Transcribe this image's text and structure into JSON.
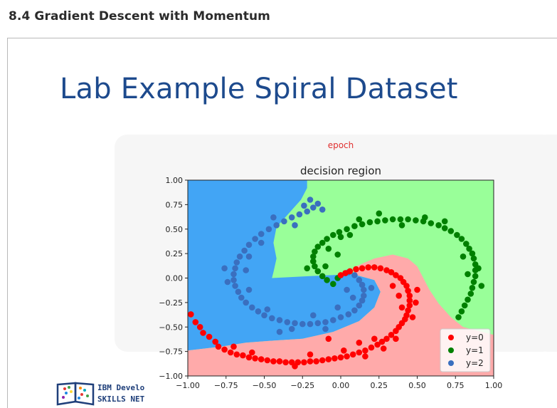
{
  "page": {
    "heading": "8.4 Gradient Descent with Momentum"
  },
  "slide": {
    "title": "Lab Example Spiral Dataset",
    "brand_line1": "IBM Develo",
    "brand_line2": "SKILLS NET"
  },
  "chart_data": {
    "type": "scatter",
    "supertitle": "epoch",
    "title": "decision region",
    "xlim": [
      -1.0,
      1.0
    ],
    "ylim": [
      -1.0,
      1.0
    ],
    "xticks": [
      "−1.00",
      "−0.75",
      "−0.50",
      "−0.25",
      "0.00",
      "0.25",
      "0.50",
      "0.75",
      "1.00"
    ],
    "yticks": [
      "1.00",
      "0.75",
      "0.50",
      "0.25",
      "0.00",
      "−0.25",
      "−0.50",
      "−0.75",
      "−1.00"
    ],
    "xtick_values": [
      -1.0,
      -0.75,
      -0.5,
      -0.25,
      0.0,
      0.25,
      0.5,
      0.75,
      1.0
    ],
    "ytick_values": [
      1.0,
      0.75,
      0.5,
      0.25,
      0.0,
      -0.25,
      -0.5,
      -0.75,
      -1.0
    ],
    "legend_position": "lower-right",
    "series": [
      {
        "name": "y=0",
        "color": "#ff0000",
        "region_color": "#ffaaaa",
        "points": [
          [
            -0.98,
            -0.37
          ],
          [
            -0.95,
            -0.45
          ],
          [
            -0.92,
            -0.5
          ],
          [
            -0.9,
            -0.56
          ],
          [
            -0.86,
            -0.6
          ],
          [
            -0.82,
            -0.65
          ],
          [
            -0.8,
            -0.7
          ],
          [
            -0.76,
            -0.73
          ],
          [
            -0.72,
            -0.76
          ],
          [
            -0.68,
            -0.78
          ],
          [
            -0.64,
            -0.79
          ],
          [
            -0.6,
            -0.81
          ],
          [
            -0.56,
            -0.82
          ],
          [
            -0.52,
            -0.83
          ],
          [
            -0.48,
            -0.84
          ],
          [
            -0.44,
            -0.85
          ],
          [
            -0.4,
            -0.85
          ],
          [
            -0.36,
            -0.86
          ],
          [
            -0.32,
            -0.86
          ],
          [
            -0.28,
            -0.86
          ],
          [
            -0.24,
            -0.86
          ],
          [
            -0.2,
            -0.85
          ],
          [
            -0.16,
            -0.85
          ],
          [
            -0.12,
            -0.84
          ],
          [
            -0.08,
            -0.83
          ],
          [
            -0.04,
            -0.82
          ],
          [
            0.0,
            -0.81
          ],
          [
            0.04,
            -0.8
          ],
          [
            0.08,
            -0.78
          ],
          [
            0.12,
            -0.76
          ],
          [
            0.16,
            -0.74
          ],
          [
            0.2,
            -0.71
          ],
          [
            0.24,
            -0.68
          ],
          [
            0.27,
            -0.65
          ],
          [
            0.3,
            -0.62
          ],
          [
            0.33,
            -0.58
          ],
          [
            0.36,
            -0.54
          ],
          [
            0.38,
            -0.5
          ],
          [
            0.4,
            -0.46
          ],
          [
            0.42,
            -0.42
          ],
          [
            0.43,
            -0.38
          ],
          [
            0.44,
            -0.33
          ],
          [
            0.45,
            -0.28
          ],
          [
            0.45,
            -0.23
          ],
          [
            0.45,
            -0.18
          ],
          [
            0.44,
            -0.13
          ],
          [
            0.43,
            -0.08
          ],
          [
            0.41,
            -0.04
          ],
          [
            0.39,
            0.0
          ],
          [
            0.36,
            0.03
          ],
          [
            0.33,
            0.06
          ],
          [
            0.3,
            0.08
          ],
          [
            0.26,
            0.1
          ],
          [
            0.22,
            0.11
          ],
          [
            0.18,
            0.11
          ],
          [
            0.14,
            0.1
          ],
          [
            0.1,
            0.09
          ],
          [
            0.06,
            0.07
          ],
          [
            0.03,
            0.05
          ],
          [
            0.0,
            0.03
          ],
          [
            -0.08,
            -0.62
          ],
          [
            0.02,
            -0.74
          ],
          [
            0.16,
            -0.8
          ],
          [
            0.28,
            -0.72
          ],
          [
            0.36,
            -0.62
          ],
          [
            0.47,
            -0.4
          ],
          [
            0.49,
            -0.25
          ],
          [
            0.5,
            -0.12
          ],
          [
            -0.3,
            -0.9
          ],
          [
            -0.2,
            -0.78
          ],
          [
            -0.58,
            -0.76
          ],
          [
            -0.7,
            -0.7
          ],
          [
            0.12,
            -0.66
          ],
          [
            0.22,
            -0.62
          ],
          [
            0.4,
            -0.3
          ],
          [
            0.38,
            -0.18
          ],
          [
            0.34,
            -0.08
          ]
        ]
      },
      {
        "name": "y=1",
        "color": "#008000",
        "region_color": "#99ff99",
        "points": [
          [
            -0.05,
            -0.06
          ],
          [
            -0.09,
            -0.02
          ],
          [
            -0.12,
            0.02
          ],
          [
            -0.15,
            0.07
          ],
          [
            -0.17,
            0.12
          ],
          [
            -0.18,
            0.17
          ],
          [
            -0.18,
            0.22
          ],
          [
            -0.17,
            0.27
          ],
          [
            -0.15,
            0.32
          ],
          [
            -0.12,
            0.36
          ],
          [
            -0.09,
            0.4
          ],
          [
            -0.05,
            0.44
          ],
          [
            -0.01,
            0.47
          ],
          [
            0.04,
            0.5
          ],
          [
            0.09,
            0.53
          ],
          [
            0.14,
            0.55
          ],
          [
            0.19,
            0.57
          ],
          [
            0.24,
            0.58
          ],
          [
            0.29,
            0.59
          ],
          [
            0.34,
            0.6
          ],
          [
            0.39,
            0.6
          ],
          [
            0.44,
            0.6
          ],
          [
            0.49,
            0.59
          ],
          [
            0.54,
            0.58
          ],
          [
            0.59,
            0.56
          ],
          [
            0.64,
            0.54
          ],
          [
            0.68,
            0.51
          ],
          [
            0.72,
            0.48
          ],
          [
            0.76,
            0.44
          ],
          [
            0.79,
            0.4
          ],
          [
            0.82,
            0.35
          ],
          [
            0.84,
            0.3
          ],
          [
            0.86,
            0.25
          ],
          [
            0.87,
            0.2
          ],
          [
            0.88,
            0.14
          ],
          [
            0.88,
            0.08
          ],
          [
            0.88,
            0.02
          ],
          [
            0.87,
            -0.04
          ],
          [
            0.86,
            -0.1
          ],
          [
            0.85,
            -0.16
          ],
          [
            0.83,
            -0.22
          ],
          [
            0.81,
            -0.28
          ],
          [
            0.79,
            -0.34
          ],
          [
            0.77,
            -0.4
          ],
          [
            -0.02,
            0.0
          ],
          [
            -0.1,
            0.12
          ],
          [
            -0.08,
            0.3
          ],
          [
            0.0,
            0.42
          ],
          [
            0.12,
            0.6
          ],
          [
            0.25,
            0.66
          ],
          [
            0.4,
            0.54
          ],
          [
            0.55,
            0.62
          ],
          [
            0.68,
            0.58
          ],
          [
            0.8,
            0.22
          ],
          [
            0.83,
            0.04
          ],
          [
            0.9,
            0.1
          ],
          [
            0.92,
            -0.08
          ],
          [
            -0.22,
            0.1
          ],
          [
            -0.02,
            0.24
          ],
          [
            0.06,
            0.44
          ]
        ]
      },
      {
        "name": "y=2",
        "color": "#3a6fbf",
        "region_color": "#42a5f5",
        "points": [
          [
            0.05,
            0.06
          ],
          [
            0.09,
            0.03
          ],
          [
            0.12,
            -0.02
          ],
          [
            0.14,
            -0.07
          ],
          [
            0.15,
            -0.12
          ],
          [
            0.15,
            -0.18
          ],
          [
            0.14,
            -0.23
          ],
          [
            0.12,
            -0.28
          ],
          [
            0.09,
            -0.33
          ],
          [
            0.05,
            -0.37
          ],
          [
            0.0,
            -0.4
          ],
          [
            -0.05,
            -0.43
          ],
          [
            -0.1,
            -0.45
          ],
          [
            -0.15,
            -0.46
          ],
          [
            -0.2,
            -0.47
          ],
          [
            -0.25,
            -0.47
          ],
          [
            -0.3,
            -0.46
          ],
          [
            -0.35,
            -0.45
          ],
          [
            -0.4,
            -0.43
          ],
          [
            -0.45,
            -0.41
          ],
          [
            -0.5,
            -0.38
          ],
          [
            -0.54,
            -0.34
          ],
          [
            -0.58,
            -0.3
          ],
          [
            -0.62,
            -0.25
          ],
          [
            -0.65,
            -0.2
          ],
          [
            -0.67,
            -0.14
          ],
          [
            -0.69,
            -0.08
          ],
          [
            -0.7,
            -0.02
          ],
          [
            -0.7,
            0.04
          ],
          [
            -0.69,
            0.1
          ],
          [
            -0.68,
            0.16
          ],
          [
            -0.66,
            0.22
          ],
          [
            -0.63,
            0.28
          ],
          [
            -0.6,
            0.34
          ],
          [
            -0.56,
            0.4
          ],
          [
            -0.52,
            0.45
          ],
          [
            -0.47,
            0.5
          ],
          [
            -0.42,
            0.54
          ],
          [
            -0.37,
            0.58
          ],
          [
            -0.32,
            0.62
          ],
          [
            -0.27,
            0.65
          ],
          [
            -0.22,
            0.68
          ],
          [
            -0.18,
            0.72
          ],
          [
            -0.15,
            0.76
          ],
          [
            0.04,
            -0.12
          ],
          [
            -0.02,
            -0.3
          ],
          [
            -0.18,
            -0.38
          ],
          [
            -0.32,
            -0.52
          ],
          [
            -0.48,
            -0.32
          ],
          [
            -0.6,
            -0.12
          ],
          [
            -0.62,
            0.08
          ],
          [
            -0.6,
            0.22
          ],
          [
            -0.52,
            0.36
          ],
          [
            -0.44,
            0.62
          ],
          [
            -0.3,
            0.54
          ],
          [
            -0.24,
            0.74
          ],
          [
            -0.2,
            0.8
          ],
          [
            -0.12,
            0.7
          ],
          [
            -0.76,
            0.1
          ],
          [
            -0.74,
            -0.04
          ],
          [
            0.2,
            -0.1
          ],
          [
            0.08,
            -0.2
          ],
          [
            -0.1,
            -0.52
          ],
          [
            -0.4,
            -0.55
          ]
        ]
      }
    ]
  }
}
